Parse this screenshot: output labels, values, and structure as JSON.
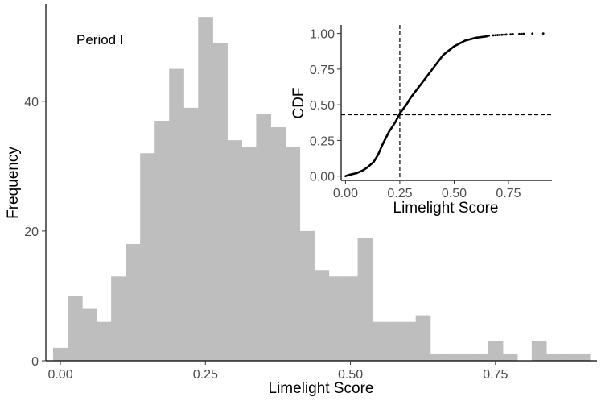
{
  "chart_data": [
    {
      "type": "bar",
      "subtype": "histogram",
      "annotation": "Period I",
      "xlabel": "Limelight Score",
      "ylabel": "Frequency",
      "xlim": [
        -0.025,
        0.925
      ],
      "ylim": [
        0,
        55
      ],
      "xticks": [
        0.0,
        0.25,
        0.5,
        0.75
      ],
      "xtick_labels": [
        "0.00",
        "0.25",
        "0.50",
        "0.75"
      ],
      "yticks": [
        0,
        20,
        40
      ],
      "ytick_labels": [
        "0",
        "20",
        "40"
      ],
      "bin_width": 0.025,
      "bin_start": -0.0125,
      "values": [
        2,
        10,
        8,
        6,
        13,
        18,
        32,
        37,
        45,
        39,
        53,
        49,
        34,
        33,
        38,
        36,
        33,
        20,
        14,
        13,
        13,
        19,
        6,
        6,
        6,
        7,
        1,
        1,
        1,
        1,
        3,
        1,
        0,
        3,
        1,
        1,
        1
      ],
      "bar_color": "#bebebe",
      "grid": false
    },
    {
      "type": "line",
      "subtype": "ecdf",
      "xlabel": "Limelight Score",
      "ylabel": "CDF",
      "xlim": [
        -0.02,
        0.95
      ],
      "ylim": [
        -0.03,
        1.06
      ],
      "xticks": [
        0.0,
        0.25,
        0.5,
        0.75
      ],
      "xtick_labels": [
        "0.00",
        "0.25",
        "0.50",
        "0.75"
      ],
      "yticks": [
        0.0,
        0.25,
        0.5,
        0.75,
        1.0
      ],
      "ytick_labels": [
        "0.00",
        "0.25",
        "0.50",
        "0.75",
        "1.00"
      ],
      "reference_lines": {
        "vertical_x": 0.25,
        "horizontal_y": 0.43
      },
      "x": [
        0.0,
        0.02,
        0.05,
        0.08,
        0.1,
        0.13,
        0.15,
        0.17,
        0.2,
        0.23,
        0.25,
        0.28,
        0.3,
        0.33,
        0.36,
        0.4,
        0.45,
        0.5,
        0.55,
        0.6,
        0.65
      ],
      "y": [
        0.0,
        0.01,
        0.02,
        0.04,
        0.06,
        0.1,
        0.15,
        0.22,
        0.31,
        0.38,
        0.44,
        0.5,
        0.55,
        0.61,
        0.67,
        0.75,
        0.85,
        0.91,
        0.95,
        0.97,
        0.98
      ],
      "tail_points": [
        [
          0.66,
          0.985
        ],
        [
          0.68,
          0.987
        ],
        [
          0.69,
          0.988
        ],
        [
          0.7,
          0.989
        ],
        [
          0.71,
          0.99
        ],
        [
          0.72,
          0.991
        ],
        [
          0.73,
          0.992
        ],
        [
          0.74,
          0.993
        ],
        [
          0.76,
          0.994
        ],
        [
          0.77,
          0.995
        ],
        [
          0.8,
          0.996
        ],
        [
          0.81,
          0.997
        ],
        [
          0.82,
          0.998
        ],
        [
          0.86,
          0.999
        ],
        [
          0.91,
          1.0
        ]
      ],
      "grid": false
    }
  ]
}
